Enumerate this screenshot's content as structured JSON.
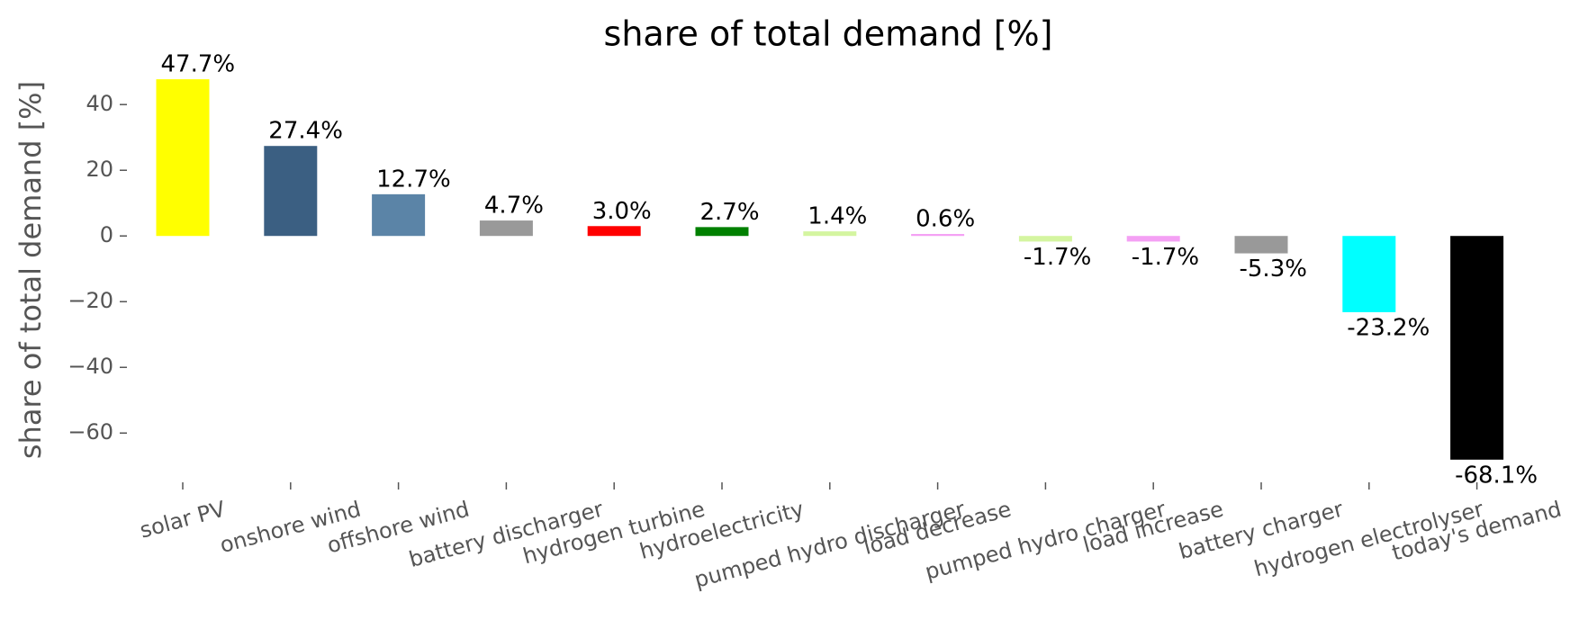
{
  "chart_data": {
    "type": "bar",
    "title": "share of total demand [%]",
    "ylabel": "share of total demand [%]",
    "categories": [
      "solar PV",
      "onshore wind",
      "offshore wind",
      "battery discharger",
      "hydrogen turbine",
      "hydroelectricity",
      "pumped hydro discharger",
      "load decrease",
      "pumped hydro charger",
      "load increase",
      "battery charger",
      "hydrogen electrolyser",
      "today's demand"
    ],
    "values": [
      47.7,
      27.4,
      12.7,
      4.7,
      3.0,
      2.7,
      1.4,
      0.6,
      -1.7,
      -1.7,
      -5.3,
      -23.2,
      -68.1
    ],
    "value_labels": [
      "47.7%",
      "27.4%",
      "12.7%",
      "4.7%",
      "3.0%",
      "2.7%",
      "1.4%",
      "0.6%",
      "-1.7%",
      "-1.7%",
      "-5.3%",
      "-23.2%",
      "-68.1%"
    ],
    "colors": [
      "#ffff00",
      "#3b5f82",
      "#5b84a7",
      "#999999",
      "#ff0000",
      "#008000",
      "#d4f5a0",
      "#f4a0f4",
      "#d4f5a0",
      "#f4a0f4",
      "#999999",
      "#00ffff",
      "#000000"
    ],
    "ylim": [
      -75,
      48
    ],
    "yticks": [
      {
        "value": -60,
        "label": "−60"
      },
      {
        "value": -40,
        "label": "−40"
      },
      {
        "value": -20,
        "label": "−20"
      },
      0,
      20,
      40
    ],
    "grid": false
  }
}
